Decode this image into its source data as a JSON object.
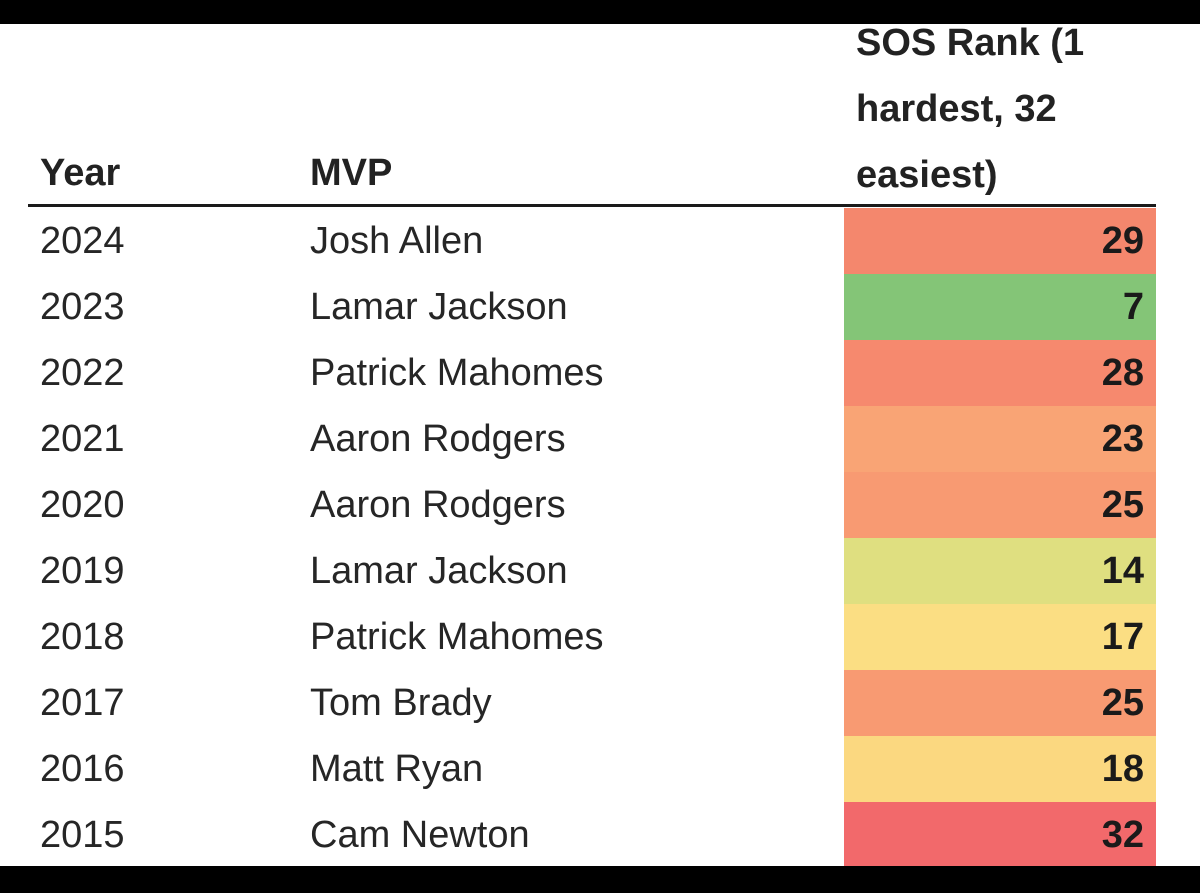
{
  "table": {
    "headers": {
      "year": "Year",
      "mvp": "MVP",
      "sos": "SOS Rank (1 hardest, 32 easiest)"
    },
    "rows": [
      {
        "year": "2024",
        "mvp": "Josh Allen",
        "rank": "29",
        "color": "#f4876d"
      },
      {
        "year": "2023",
        "mvp": "Lamar Jackson",
        "rank": "7",
        "color": "#84c577"
      },
      {
        "year": "2022",
        "mvp": "Patrick Mahomes",
        "rank": "28",
        "color": "#f6896e"
      },
      {
        "year": "2021",
        "mvp": "Aaron Rodgers",
        "rank": "23",
        "color": "#f9a475"
      },
      {
        "year": "2020",
        "mvp": "Aaron Rodgers",
        "rank": "25",
        "color": "#f89a72"
      },
      {
        "year": "2019",
        "mvp": "Lamar Jackson",
        "rank": "14",
        "color": "#dfdf80"
      },
      {
        "year": "2018",
        "mvp": "Patrick Mahomes",
        "rank": "17",
        "color": "#fbde83"
      },
      {
        "year": "2017",
        "mvp": "Tom Brady",
        "rank": "25",
        "color": "#f89a72"
      },
      {
        "year": "2016",
        "mvp": "Matt Ryan",
        "rank": "18",
        "color": "#fbd880"
      },
      {
        "year": "2015",
        "mvp": "Cam Newton",
        "rank": "32",
        "color": "#f2696b"
      }
    ]
  },
  "chart_data": {
    "type": "table",
    "columns": [
      "Year",
      "MVP",
      "SOS Rank (1 hardest, 32 easiest)"
    ],
    "rows": [
      [
        "2024",
        "Josh Allen",
        29
      ],
      [
        "2023",
        "Lamar Jackson",
        7
      ],
      [
        "2022",
        "Patrick Mahomes",
        28
      ],
      [
        "2021",
        "Aaron Rodgers",
        23
      ],
      [
        "2020",
        "Aaron Rodgers",
        25
      ],
      [
        "2019",
        "Lamar Jackson",
        14
      ],
      [
        "2018",
        "Patrick Mahomes",
        17
      ],
      [
        "2017",
        "Tom Brady",
        25
      ],
      [
        "2016",
        "Matt Ryan",
        18
      ],
      [
        "2015",
        "Cam Newton",
        32
      ]
    ],
    "color_scale": {
      "low": "#84c577",
      "mid": "#fbe083",
      "high": "#f2696b"
    }
  }
}
